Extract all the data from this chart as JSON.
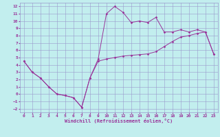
{
  "xlabel": "Windchill (Refroidissement éolien,°C)",
  "xlim": [
    -0.5,
    23.5
  ],
  "ylim": [
    -2.5,
    12.5
  ],
  "xticks": [
    0,
    1,
    2,
    3,
    4,
    5,
    6,
    7,
    8,
    9,
    10,
    11,
    12,
    13,
    14,
    15,
    16,
    17,
    18,
    19,
    20,
    21,
    22,
    23
  ],
  "yticks": [
    -2,
    -1,
    0,
    1,
    2,
    3,
    4,
    5,
    6,
    7,
    8,
    9,
    10,
    11,
    12
  ],
  "bg_color": "#c2eeee",
  "grid_color": "#9999cc",
  "line_color": "#993399",
  "temp_x": [
    0,
    1,
    2,
    3,
    4,
    5,
    6,
    7,
    8,
    9,
    10,
    11,
    12,
    13,
    14,
    15,
    16,
    17,
    18,
    19,
    20,
    21,
    22,
    23
  ],
  "temp_y": [
    4.5,
    3.0,
    2.2,
    1.0,
    0.0,
    -0.2,
    -0.5,
    -1.8,
    2.2,
    4.8,
    11.0,
    12.0,
    11.2,
    9.8,
    10.0,
    9.8,
    10.5,
    8.5,
    8.5,
    8.8,
    8.5,
    8.8,
    8.5,
    5.5
  ],
  "wc_x": [
    0,
    1,
    2,
    3,
    4,
    5,
    6,
    7,
    8,
    9,
    10,
    11,
    12,
    13,
    14,
    15,
    16,
    17,
    18,
    19,
    20,
    21,
    22,
    23
  ],
  "wc_y": [
    4.5,
    3.0,
    2.2,
    1.0,
    0.0,
    -0.2,
    -0.5,
    -1.8,
    2.2,
    4.5,
    4.8,
    5.0,
    5.2,
    5.3,
    5.4,
    5.5,
    5.8,
    6.5,
    7.2,
    7.8,
    8.0,
    8.3,
    8.5,
    5.5
  ]
}
